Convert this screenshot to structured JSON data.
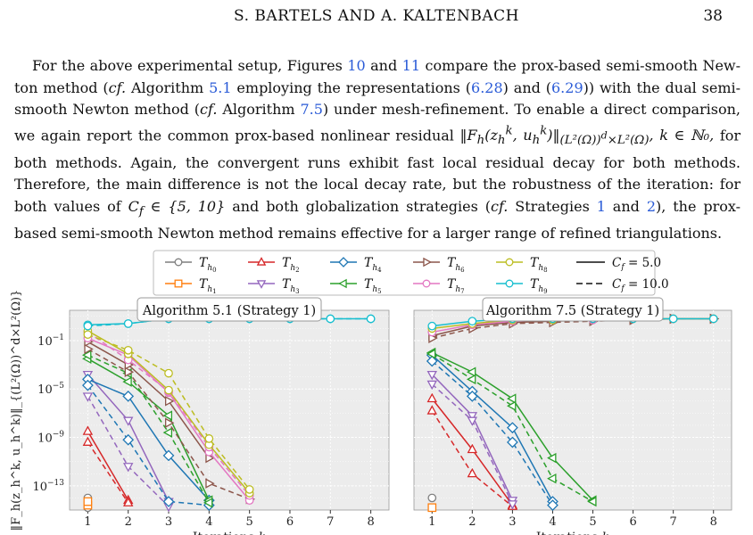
{
  "header": {
    "authors": "S. BARTELS AND A. KALTENBACH",
    "page_number": "38"
  },
  "paragraph": {
    "lines": [
      [
        "For the above experimental setup, Figures ",
        {
          "link": "10"
        },
        " and ",
        {
          "link": "11"
        },
        " compare the prox-based semi-smooth New-"
      ],
      [
        "ton method (",
        {
          "em": "cf."
        },
        " Algorithm ",
        {
          "link": "5.1"
        },
        " employing the representations (",
        {
          "link": "6.28"
        },
        ") and (",
        {
          "link": "6.29"
        },
        ")) with the dual semi-"
      ],
      [
        "smooth Newton method (",
        {
          "em": "cf."
        },
        " Algorithm ",
        {
          "link": "7.5"
        },
        ") under mesh-refinement. To enable a direct comparison,"
      ],
      [
        "we again report the common prox-based nonlinear residual ",
        {
          "math": "‖F_h(z_h^k, u_h^k)‖_{(L²(Ω))^d×L²(Ω)}, k ∈ ℕ₀,"
        }
      ],
      [
        "for both methods. Again, the convergent runs exhibit fast local residual decay for both methods."
      ],
      [
        "Therefore, the main difference is not the local decay rate, but the robustness of the iteration:"
      ],
      [
        "for both values of ",
        {
          "math": "C_f ∈ {5, 10}"
        },
        " and both globalization strategies (",
        {
          "em": "cf."
        },
        " Strategies ",
        {
          "link": "1"
        },
        " and ",
        {
          "link": "2"
        },
        "), the prox-"
      ],
      [
        "based semi-smooth Newton method remains effective for a larger range of refined triangulations."
      ]
    ]
  },
  "chart_data": [
    {
      "type": "line",
      "title": "Algorithm 5.1 (Strategy 1)",
      "xlabel": "Iterations k",
      "ylabel": "‖F_h(z_h^k, u_h^k)‖_{(L²(Ω))^d×L²(Ω)}",
      "xlim": [
        0.55,
        8.45
      ],
      "ylim_log10": [
        -15,
        1.5
      ],
      "yscale": "log",
      "xticks": [
        1,
        2,
        3,
        4,
        5,
        6,
        7,
        8
      ],
      "yticks_log10": [
        -1,
        -5,
        -9,
        -13
      ],
      "grid": true,
      "series": [
        {
          "name": "T_h0",
          "color": "#7f7f7f",
          "marker": "circle",
          "dash": false,
          "x": [
            1
          ],
          "y_log10": [
            -14.0
          ]
        },
        {
          "name": "T_h0",
          "color": "#7f7f7f",
          "marker": "circle",
          "dash": true,
          "x": [
            1
          ],
          "y_log10": [
            -14.8
          ]
        },
        {
          "name": "T_h1",
          "color": "#ff7f0e",
          "marker": "square",
          "dash": false,
          "x": [
            1
          ],
          "y_log10": [
            -14.6
          ]
        },
        {
          "name": "T_h1",
          "color": "#ff7f0e",
          "marker": "square",
          "dash": true,
          "x": [
            1
          ],
          "y_log10": [
            -14.3
          ]
        },
        {
          "name": "T_h2",
          "color": "#d62728",
          "marker": "triangle-up",
          "dash": false,
          "x": [
            1,
            2
          ],
          "y_log10": [
            -8.5,
            -14.2
          ]
        },
        {
          "name": "T_h2",
          "color": "#d62728",
          "marker": "triangle-up",
          "dash": true,
          "x": [
            1,
            2
          ],
          "y_log10": [
            -9.4,
            -14.4
          ]
        },
        {
          "name": "T_h3",
          "color": "#9467bd",
          "marker": "triangle-down",
          "dash": false,
          "x": [
            1,
            2,
            3
          ],
          "y_log10": [
            -3.8,
            -7.6,
            -14.3
          ]
        },
        {
          "name": "T_h3",
          "color": "#9467bd",
          "marker": "triangle-down",
          "dash": true,
          "x": [
            1,
            2,
            3
          ],
          "y_log10": [
            -5.6,
            -11.4,
            -14.7
          ]
        },
        {
          "name": "T_h4",
          "color": "#1f77b4",
          "marker": "diamond",
          "dash": false,
          "x": [
            1,
            2,
            3,
            4
          ],
          "y_log10": [
            -4.2,
            -5.6,
            -10.5,
            -14.2
          ]
        },
        {
          "name": "T_h4",
          "color": "#1f77b4",
          "marker": "diamond",
          "dash": true,
          "x": [
            1,
            2,
            3,
            4
          ],
          "y_log10": [
            -4.7,
            -9.2,
            -14.3,
            -14.6
          ]
        },
        {
          "name": "T_h5",
          "color": "#2ca02c",
          "marker": "triangle-left",
          "dash": false,
          "x": [
            1,
            2,
            3,
            4
          ],
          "y_log10": [
            -2.5,
            -4.4,
            -7.2,
            -14.2
          ]
        },
        {
          "name": "T_h5",
          "color": "#2ca02c",
          "marker": "triangle-left",
          "dash": true,
          "x": [
            1,
            2,
            3,
            4
          ],
          "y_log10": [
            -2.2,
            -3.7,
            -8.6,
            -14.4
          ]
        },
        {
          "name": "T_h6",
          "color": "#8c564b",
          "marker": "triangle-right",
          "dash": false,
          "x": [
            1,
            2,
            3,
            4
          ],
          "y_log10": [
            -1.1,
            -3.0,
            -6.0,
            -10.7
          ]
        },
        {
          "name": "T_h6",
          "color": "#8c564b",
          "marker": "triangle-right",
          "dash": true,
          "x": [
            1,
            2,
            3,
            4,
            5
          ],
          "y_log10": [
            -1.7,
            -3.6,
            -7.8,
            -12.8,
            -14.1
          ]
        },
        {
          "name": "T_h7",
          "color": "#e377c2",
          "marker": "circle",
          "dash": false,
          "x": [
            1,
            2,
            3,
            4,
            5
          ],
          "y_log10": [
            -0.8,
            -2.2,
            -5.3,
            -10.2,
            -14.2
          ]
        },
        {
          "name": "T_h7",
          "color": "#e377c2",
          "marker": "circle",
          "dash": true,
          "x": [
            1,
            2,
            3,
            4,
            5
          ],
          "y_log10": [
            -0.3,
            -2.6,
            -5.2,
            -9.8,
            -13.8
          ]
        },
        {
          "name": "T_h8",
          "color": "#bcbd22",
          "marker": "circle",
          "dash": false,
          "x": [
            1,
            2,
            3,
            4,
            5
          ],
          "y_log10": [
            -0.2,
            -2.1,
            -5.1,
            -9.6,
            -13.6
          ]
        },
        {
          "name": "T_h8",
          "color": "#bcbd22",
          "marker": "circle",
          "dash": true,
          "x": [
            1,
            2,
            3,
            4,
            5
          ],
          "y_log10": [
            -0.5,
            -1.8,
            -3.7,
            -9.1,
            -13.3
          ]
        },
        {
          "name": "T_h9",
          "color": "#17becf",
          "marker": "circle",
          "dash": false,
          "x": [
            1,
            2,
            3,
            4,
            5,
            6,
            7,
            8
          ],
          "y_log10": [
            0.3,
            0.4,
            0.8,
            0.8,
            0.8,
            0.8,
            0.8,
            0.8
          ]
        },
        {
          "name": "T_h9",
          "color": "#17becf",
          "marker": "circle",
          "dash": true,
          "x": [
            1,
            2,
            3,
            4,
            5,
            6,
            7,
            8
          ],
          "y_log10": [
            0.2,
            0.4,
            0.8,
            0.8,
            0.8,
            0.8,
            0.8,
            0.8
          ]
        }
      ]
    },
    {
      "type": "line",
      "title": "Algorithm 7.5 (Strategy 1)",
      "xlabel": "Iterations k",
      "xlim": [
        0.55,
        8.45
      ],
      "ylim_log10": [
        -15,
        1.5
      ],
      "yscale": "log",
      "xticks": [
        1,
        2,
        3,
        4,
        5,
        6,
        7,
        8
      ],
      "grid": true,
      "series": [
        {
          "name": "T_h0",
          "color": "#7f7f7f",
          "marker": "circle",
          "dash": false,
          "x": [
            1
          ],
          "y_log10": [
            -14.0
          ]
        },
        {
          "name": "T_h1",
          "color": "#ff7f0e",
          "marker": "square",
          "dash": false,
          "x": [
            1
          ],
          "y_log10": [
            -14.8
          ]
        },
        {
          "name": "T_h2",
          "color": "#d62728",
          "marker": "triangle-up",
          "dash": false,
          "x": [
            1,
            2,
            3
          ],
          "y_log10": [
            -5.8,
            -10.0,
            -14.6
          ]
        },
        {
          "name": "T_h2",
          "color": "#d62728",
          "marker": "triangle-up",
          "dash": true,
          "x": [
            1,
            2,
            3
          ],
          "y_log10": [
            -6.8,
            -12.0,
            -14.7
          ]
        },
        {
          "name": "T_h3",
          "color": "#9467bd",
          "marker": "triangle-down",
          "dash": false,
          "x": [
            1,
            2,
            3
          ],
          "y_log10": [
            -3.8,
            -7.2,
            -14.2
          ]
        },
        {
          "name": "T_h3",
          "color": "#9467bd",
          "marker": "triangle-down",
          "dash": true,
          "x": [
            1,
            2,
            3
          ],
          "y_log10": [
            -4.6,
            -7.6,
            -14.5
          ]
        },
        {
          "name": "T_h4",
          "color": "#1f77b4",
          "marker": "diamond",
          "dash": false,
          "x": [
            1,
            2,
            3,
            4
          ],
          "y_log10": [
            -2.2,
            -5.2,
            -8.2,
            -14.3
          ]
        },
        {
          "name": "T_h4",
          "color": "#1f77b4",
          "marker": "diamond",
          "dash": true,
          "x": [
            1,
            2,
            3,
            4
          ],
          "y_log10": [
            -2.7,
            -5.6,
            -9.4,
            -14.6
          ]
        },
        {
          "name": "T_h5",
          "color": "#2ca02c",
          "marker": "triangle-left",
          "dash": false,
          "x": [
            1,
            2,
            3,
            4,
            5
          ],
          "y_log10": [
            -2.0,
            -3.6,
            -5.8,
            -10.7,
            -14.2
          ]
        },
        {
          "name": "T_h5",
          "color": "#2ca02c",
          "marker": "triangle-left",
          "dash": true,
          "x": [
            1,
            2,
            3,
            4,
            5
          ],
          "y_log10": [
            -2.1,
            -4.2,
            -6.4,
            -12.4,
            -14.3
          ]
        },
        {
          "name": "T_h6",
          "color": "#8c564b",
          "marker": "triangle-right",
          "dash": false,
          "x": [
            1,
            2,
            3,
            4,
            5,
            6,
            7,
            8
          ],
          "y_log10": [
            -0.6,
            0.2,
            0.5,
            0.6,
            0.7,
            0.7,
            0.8,
            0.8
          ]
        },
        {
          "name": "T_h6",
          "color": "#8c564b",
          "marker": "triangle-right",
          "dash": true,
          "x": [
            1,
            2,
            3,
            4,
            5,
            6,
            7,
            8
          ],
          "y_log10": [
            -0.8,
            0.0,
            0.4,
            0.5,
            0.6,
            0.7,
            0.8,
            0.8
          ]
        },
        {
          "name": "T_h7",
          "color": "#e377c2",
          "marker": "circle",
          "dash": false,
          "x": [
            1,
            2,
            3,
            4,
            5,
            6,
            7,
            8
          ],
          "y_log10": [
            -0.3,
            0.3,
            0.6,
            0.7,
            0.7,
            0.8,
            0.8,
            0.8
          ]
        },
        {
          "name": "T_h8",
          "color": "#bcbd22",
          "marker": "circle",
          "dash": false,
          "x": [
            1,
            2,
            3,
            4,
            5,
            6,
            7,
            8
          ],
          "y_log10": [
            0.0,
            0.4,
            0.7,
            0.7,
            0.8,
            0.8,
            0.8,
            0.8
          ]
        },
        {
          "name": "T_h9",
          "color": "#17becf",
          "marker": "circle",
          "dash": false,
          "x": [
            1,
            2,
            3,
            4,
            5,
            6,
            7,
            8
          ],
          "y_log10": [
            0.2,
            0.6,
            0.8,
            0.8,
            0.8,
            0.8,
            0.8,
            0.8
          ]
        }
      ]
    }
  ],
  "legend": {
    "entries": [
      {
        "label": "T",
        "sub": "h",
        "subsub": "0",
        "color": "#7f7f7f",
        "marker": "circle"
      },
      {
        "label": "T",
        "sub": "h",
        "subsub": "1",
        "color": "#ff7f0e",
        "marker": "square"
      },
      {
        "label": "T",
        "sub": "h",
        "subsub": "2",
        "color": "#d62728",
        "marker": "triangle-up"
      },
      {
        "label": "T",
        "sub": "h",
        "subsub": "3",
        "color": "#9467bd",
        "marker": "triangle-down"
      },
      {
        "label": "T",
        "sub": "h",
        "subsub": "4",
        "color": "#1f77b4",
        "marker": "diamond"
      },
      {
        "label": "T",
        "sub": "h",
        "subsub": "5",
        "color": "#2ca02c",
        "marker": "triangle-left"
      },
      {
        "label": "T",
        "sub": "h",
        "subsub": "6",
        "color": "#8c564b",
        "marker": "triangle-right"
      },
      {
        "label": "T",
        "sub": "h",
        "subsub": "7",
        "color": "#e377c2",
        "marker": "circle"
      },
      {
        "label": "T",
        "sub": "h",
        "subsub": "8",
        "color": "#bcbd22",
        "marker": "circle"
      },
      {
        "label": "T",
        "sub": "h",
        "subsub": "9",
        "color": "#17becf",
        "marker": "circle"
      }
    ],
    "style_entries": [
      {
        "label": "C_f = 5.0",
        "dash": false
      },
      {
        "label": "C_f = 10.0",
        "dash": true
      }
    ]
  },
  "axis_text": {
    "ytick_base": "10",
    "yticks": [
      "−1",
      "−5",
      "−9",
      "−13"
    ],
    "xtick_labels": [
      "1",
      "2",
      "3",
      "4",
      "5",
      "6",
      "7",
      "8"
    ]
  }
}
